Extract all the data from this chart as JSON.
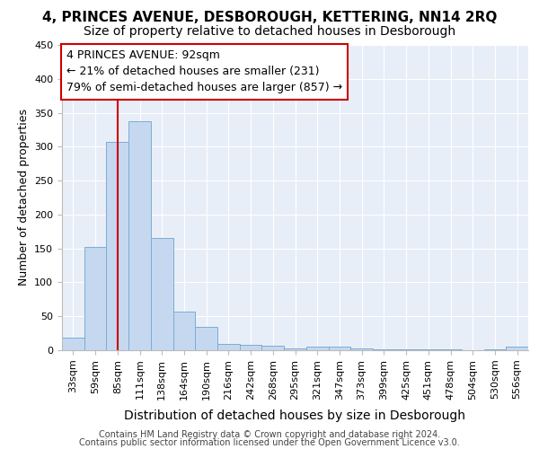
{
  "title_line1": "4, PRINCES AVENUE, DESBOROUGH, KETTERING, NN14 2RQ",
  "title_line2": "Size of property relative to detached houses in Desborough",
  "xlabel": "Distribution of detached houses by size in Desborough",
  "ylabel": "Number of detached properties",
  "footer_line1": "Contains HM Land Registry data © Crown copyright and database right 2024.",
  "footer_line2": "Contains public sector information licensed under the Open Government Licence v3.0.",
  "bar_labels": [
    "33sqm",
    "59sqm",
    "85sqm",
    "111sqm",
    "138sqm",
    "164sqm",
    "190sqm",
    "216sqm",
    "242sqm",
    "268sqm",
    "295sqm",
    "321sqm",
    "347sqm",
    "373sqm",
    "399sqm",
    "425sqm",
    "451sqm",
    "478sqm",
    "504sqm",
    "530sqm",
    "556sqm"
  ],
  "bar_values": [
    18,
    152,
    307,
    338,
    165,
    57,
    35,
    9,
    8,
    6,
    3,
    5,
    5,
    3,
    1,
    1,
    1,
    1,
    0,
    1,
    5
  ],
  "bar_color": "#c5d8f0",
  "bar_edgecolor": "#7aadd4",
  "bg_color": "#e8eef8",
  "grid_color": "#ffffff",
  "annotation_text_line1": "4 PRINCES AVENUE: 92sqm",
  "annotation_text_line2": "← 21% of detached houses are smaller (231)",
  "annotation_text_line3": "79% of semi-detached houses are larger (857) →",
  "annotation_box_facecolor": "#ffffff",
  "annotation_box_edgecolor": "#cc0000",
  "redline_color": "#cc0000",
  "ylim": [
    0,
    450
  ],
  "yticks": [
    0,
    50,
    100,
    150,
    200,
    250,
    300,
    350,
    400,
    450
  ],
  "title1_fontsize": 11,
  "title2_fontsize": 10,
  "ylabel_fontsize": 9,
  "xlabel_fontsize": 10,
  "tick_fontsize": 8,
  "annot_fontsize": 9,
  "footer_fontsize": 7
}
